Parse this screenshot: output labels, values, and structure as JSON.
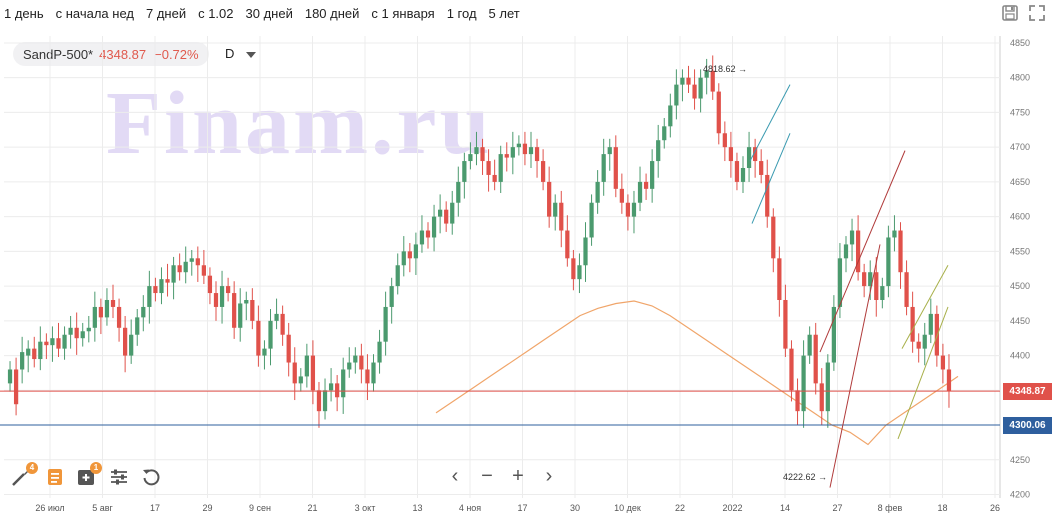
{
  "periods": [
    "1 день",
    "с начала нед",
    "7 дней",
    "с 1.02",
    "30 дней",
    "180 дней",
    "с 1 января",
    "1 год",
    "5 лет"
  ],
  "legend": {
    "ticker": "SandP-500*",
    "price": "4348.87",
    "change": "−0.72%",
    "interval": "D"
  },
  "watermark": "Finam.ru",
  "toolbar": {
    "draw_badge": "4",
    "indicators_badge": "1"
  },
  "nav": {
    "left": "‹",
    "zoom_out": "−",
    "zoom_in": "+",
    "right": "›"
  },
  "colors": {
    "up": "#4b9a6e",
    "down": "#e0514a",
    "ma": "#f0a56a",
    "last_price": "#e0514a",
    "level": "#2e5f9e",
    "grid": "#ececec"
  },
  "chart_data": {
    "type": "candlestick",
    "title": "",
    "ylim": [
      4195,
      4860
    ],
    "y_ticks": [
      4200,
      4250,
      4300,
      4350,
      4400,
      4450,
      4500,
      4550,
      4600,
      4650,
      4700,
      4750,
      4800,
      4850
    ],
    "x_ticks": [
      "26 июл",
      "5 авг",
      "17",
      "29",
      "9 сен",
      "21",
      "3 окт",
      "13",
      "4 ноя",
      "17",
      "30",
      "10 дек",
      "22",
      "2022",
      "14",
      "27",
      "8 фев",
      "18",
      "26"
    ],
    "annotations": {
      "high_label": "4818.62",
      "low_label": "4222.62"
    },
    "last_price": "4348.87",
    "level_price": "4300.06",
    "trend_levels": [
      4350,
      4400,
      4450,
      4500,
      4550,
      4600,
      4650,
      4700,
      4750,
      4780,
      4800,
      4810,
      4790,
      4750,
      4700,
      4650,
      4600,
      4550,
      4500,
      4450,
      4400,
      4350,
      4300,
      4270,
      4220,
      4300,
      4350,
      4400,
      4450,
      4500
    ],
    "closes": [
      4380,
      4330,
      4405,
      4410,
      4395,
      4420,
      4415,
      4425,
      4410,
      4430,
      4440,
      4425,
      4435,
      4440,
      4470,
      4455,
      4480,
      4470,
      4440,
      4400,
      4430,
      4455,
      4470,
      4500,
      4490,
      4510,
      4505,
      4530,
      4520,
      4535,
      4540,
      4530,
      4515,
      4490,
      4470,
      4500,
      4490,
      4440,
      4475,
      4480,
      4450,
      4400,
      4410,
      4450,
      4460,
      4430,
      4390,
      4360,
      4370,
      4400,
      4350,
      4320,
      4350,
      4360,
      4340,
      4380,
      4390,
      4400,
      4380,
      4360,
      4390,
      4420,
      4470,
      4500,
      4530,
      4550,
      4540,
      4560,
      4580,
      4570,
      4600,
      4610,
      4590,
      4620,
      4650,
      4680,
      4690,
      4700,
      4680,
      4660,
      4650,
      4690,
      4685,
      4700,
      4705,
      4690,
      4700,
      4680,
      4650,
      4600,
      4620,
      4580,
      4540,
      4510,
      4530,
      4570,
      4620,
      4650,
      4690,
      4700,
      4640,
      4620,
      4600,
      4620,
      4650,
      4640,
      4680,
      4710,
      4730,
      4760,
      4790,
      4800,
      4790,
      4770,
      4800,
      4810,
      4780,
      4720,
      4700,
      4680,
      4650,
      4670,
      4700,
      4680,
      4660,
      4600,
      4540,
      4480,
      4410,
      4350,
      4320,
      4400,
      4430,
      4360,
      4320,
      4390,
      4470,
      4540,
      4560,
      4580,
      4520,
      4500,
      4520,
      4480,
      4500,
      4570,
      4580,
      4520,
      4470,
      4420,
      4410,
      4430,
      4460,
      4400,
      4380,
      4348.87
    ],
    "opens": [
      4360,
      4380,
      4380,
      4400,
      4410,
      4395,
      4420,
      4415,
      4425,
      4410,
      4430,
      4440,
      4425,
      4435,
      4440,
      4470,
      4455,
      4480,
      4470,
      4440,
      4400,
      4430,
      4455,
      4470,
      4500,
      4490,
      4510,
      4505,
      4530,
      4520,
      4535,
      4540,
      4530,
      4515,
      4490,
      4470,
      4500,
      4490,
      4440,
      4475,
      4480,
      4450,
      4400,
      4410,
      4450,
      4460,
      4430,
      4390,
      4360,
      4370,
      4400,
      4350,
      4320,
      4350,
      4360,
      4340,
      4380,
      4390,
      4400,
      4380,
      4360,
      4390,
      4420,
      4470,
      4500,
      4530,
      4550,
      4540,
      4560,
      4580,
      4570,
      4600,
      4610,
      4590,
      4620,
      4650,
      4680,
      4690,
      4700,
      4680,
      4660,
      4650,
      4690,
      4685,
      4700,
      4705,
      4690,
      4700,
      4680,
      4650,
      4600,
      4620,
      4580,
      4540,
      4510,
      4530,
      4570,
      4620,
      4650,
      4690,
      4700,
      4640,
      4620,
      4600,
      4620,
      4650,
      4640,
      4680,
      4710,
      4730,
      4760,
      4790,
      4800,
      4790,
      4770,
      4800,
      4810,
      4780,
      4720,
      4700,
      4680,
      4650,
      4670,
      4700,
      4680,
      4660,
      4600,
      4540,
      4480,
      4410,
      4350,
      4320,
      4400,
      4430,
      4360,
      4320,
      4390,
      4470,
      4540,
      4560,
      4580,
      4520,
      4500,
      4520,
      4480,
      4500,
      4570,
      4580,
      4520,
      4470,
      4420,
      4410,
      4430,
      4460,
      4400,
      4380
    ]
  }
}
